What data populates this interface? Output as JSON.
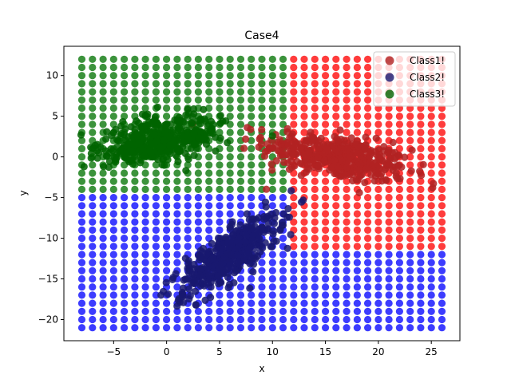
{
  "chart_data": {
    "type": "scatter",
    "title": "Case4",
    "xlabel": "x",
    "ylabel": "y",
    "xlim": [
      -9.7,
      27.7
    ],
    "ylim": [
      -22.6,
      13.6
    ],
    "xticks": [
      -5,
      0,
      5,
      10,
      15,
      20,
      25
    ],
    "yticks": [
      -20,
      -15,
      -10,
      -5,
      0,
      5,
      10
    ],
    "grid": false,
    "legend_position": "top-right",
    "legend": [
      "Class1!",
      "Class2!",
      "Class3!"
    ],
    "background_grid": {
      "x_range": [
        -8,
        26
      ],
      "y_range": [
        -21,
        12
      ],
      "step": 1,
      "class_colors": {
        "Class1!": "#ff1a1a",
        "Class2!": "#1a1aff",
        "Class3!": "#1a801a"
      }
    },
    "series": [
      {
        "name": "Class1!",
        "color": "#b22222",
        "center": [
          16,
          0
        ],
        "spread": [
          3.5,
          1.3
        ],
        "rotation_deg": -14,
        "count": 420
      },
      {
        "name": "Class2!",
        "color": "#191970",
        "center": [
          6,
          -12
        ],
        "spread": [
          3.2,
          1.1
        ],
        "rotation_deg": 45,
        "count": 420
      },
      {
        "name": "Class3!",
        "color": "#006400",
        "center": [
          -0.5,
          2
        ],
        "spread": [
          1.3,
          3.0
        ],
        "rotation_deg": -75,
        "count": 420
      }
    ]
  }
}
